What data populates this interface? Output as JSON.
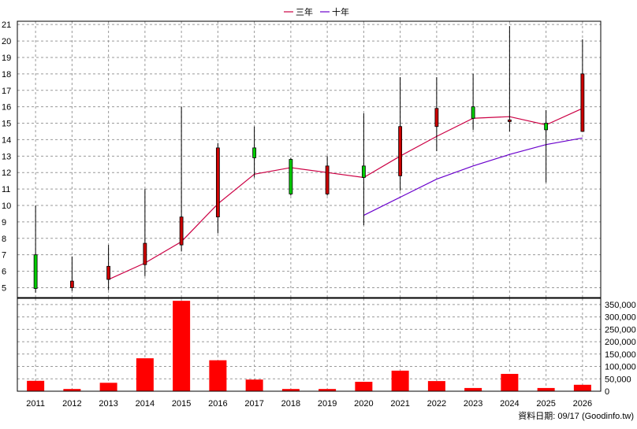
{
  "chart_data": [
    {
      "type": "candlestick",
      "legend": [
        {
          "label": "三年",
          "color": "#cc0044"
        },
        {
          "label": "十年",
          "color": "#6a00cc"
        }
      ],
      "legend_position": "top-center",
      "grid": true,
      "categories": [
        "2011",
        "2012",
        "2013",
        "2014",
        "2015",
        "2016",
        "2017",
        "2018",
        "2019",
        "2020",
        "2021",
        "2022",
        "2023",
        "2024",
        "2025",
        "2026"
      ],
      "y_ticks": [
        "5",
        "6",
        "7",
        "8",
        "9",
        "10",
        "11",
        "12",
        "13",
        "14",
        "15",
        "16",
        "17",
        "18",
        "19",
        "20",
        "21"
      ],
      "ylim": [
        4.4,
        21.2
      ],
      "candles": [
        {
          "x": "2011",
          "open": 7.0,
          "close": 4.95,
          "high": 10.0,
          "low": 4.7
        },
        {
          "x": "2012",
          "open": 5.0,
          "close": 5.4,
          "high": 6.9,
          "low": 4.8
        },
        {
          "x": "2013",
          "open": 5.5,
          "close": 6.3,
          "high": 7.6,
          "low": 4.85
        },
        {
          "x": "2014",
          "open": 6.4,
          "close": 7.7,
          "high": 11.0,
          "low": 5.7
        },
        {
          "x": "2015",
          "open": 7.6,
          "close": 9.3,
          "high": 16.0,
          "low": 7.2
        },
        {
          "x": "2016",
          "open": 9.3,
          "close": 13.5,
          "high": 13.8,
          "low": 8.3
        },
        {
          "x": "2017",
          "open": 13.5,
          "close": 12.9,
          "high": 14.8,
          "low": 11.7
        },
        {
          "x": "2018",
          "open": 12.8,
          "close": 10.7,
          "high": 12.9,
          "low": 10.6
        },
        {
          "x": "2019",
          "open": 10.7,
          "close": 12.4,
          "high": 13.0,
          "low": 10.6
        },
        {
          "x": "2020",
          "open": 12.4,
          "close": 11.7,
          "high": 15.6,
          "low": 8.8
        },
        {
          "x": "2021",
          "open": 11.8,
          "close": 14.8,
          "high": 17.8,
          "low": 10.9
        },
        {
          "x": "2022",
          "open": 14.8,
          "close": 15.9,
          "high": 17.8,
          "low": 13.3
        },
        {
          "x": "2023",
          "open": 16.0,
          "close": 15.3,
          "high": 18.0,
          "low": 14.6
        },
        {
          "x": "2024",
          "open": 15.1,
          "close": 15.2,
          "high": 20.9,
          "low": 14.5
        },
        {
          "x": "2025",
          "open": 15.0,
          "close": 14.6,
          "high": 15.8,
          "low": 11.4
        },
        {
          "x": "2026",
          "open": 14.5,
          "close": 18.0,
          "high": 20.1,
          "low": 14.5
        }
      ],
      "up_color": "#cc0000",
      "down_color": "#00cc00",
      "series": [
        {
          "name": "三年",
          "color": "#cc0044",
          "x": [
            "2013",
            "2014",
            "2015",
            "2016",
            "2017",
            "2018",
            "2019",
            "2020",
            "2021",
            "2022",
            "2023",
            "2024",
            "2025",
            "2026"
          ],
          "values": [
            5.5,
            6.5,
            7.8,
            10.1,
            11.9,
            12.3,
            12.0,
            11.7,
            13.0,
            14.2,
            15.3,
            15.4,
            14.9,
            15.9
          ]
        },
        {
          "name": "十年",
          "color": "#6a00cc",
          "x": [
            "2020",
            "2021",
            "2022",
            "2023",
            "2024",
            "2025",
            "2026"
          ],
          "values": [
            9.4,
            10.5,
            11.6,
            12.4,
            13.1,
            13.7,
            14.1
          ]
        }
      ]
    },
    {
      "type": "bar",
      "categories": [
        "2011",
        "2012",
        "2013",
        "2014",
        "2015",
        "2016",
        "2017",
        "2018",
        "2019",
        "2020",
        "2021",
        "2022",
        "2023",
        "2024",
        "2025",
        "2026"
      ],
      "values": [
        42000,
        9000,
        34000,
        133000,
        365000,
        125000,
        47000,
        9000,
        9000,
        38000,
        83000,
        41000,
        13000,
        70000,
        13000,
        26000
      ],
      "bar_color": "#ff0000",
      "y_ticks": [
        "0",
        "50,000",
        "100,000",
        "150,000",
        "200,000",
        "250,000",
        "300,000",
        "350,000"
      ],
      "ylim": [
        0,
        375000
      ],
      "grid": true
    }
  ],
  "footer": {
    "note": "資料日期: 09/17  (Goodinfo.tw)"
  }
}
